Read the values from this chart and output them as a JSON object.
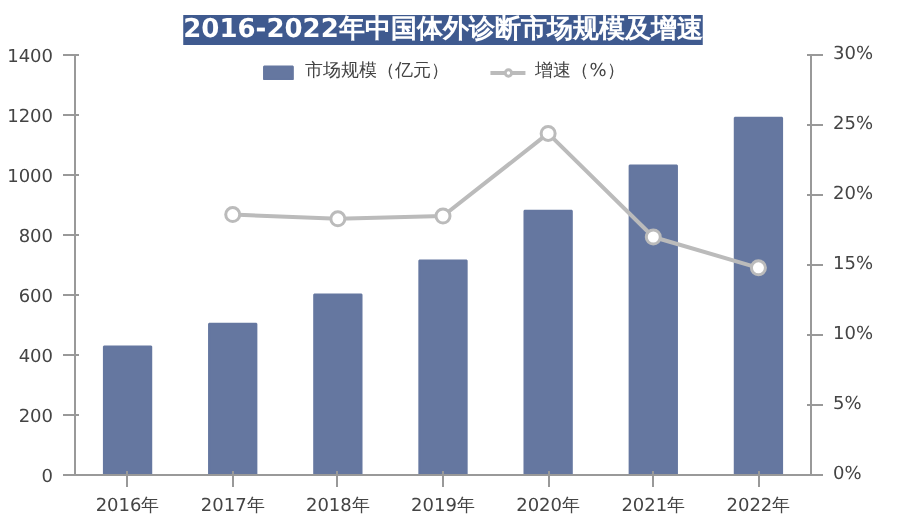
{
  "chart_data": {
    "type": "bar",
    "title": "2016-2022年中国体外诊断市场规模及增速",
    "categories": [
      "2016年",
      "2017年",
      "2018年",
      "2019年",
      "2020年",
      "2021年",
      "2022年"
    ],
    "series": [
      {
        "name": "市场规模（亿元）",
        "color": "#6577a0",
        "values": [
          428,
          504,
          602,
          715,
          881,
          1032,
          1191
        ]
      },
      {
        "name": "增速（%）",
        "type": "line",
        "axis": "y2",
        "color": "#bbbbbb",
        "marker": "circle",
        "values": [
          null,
          18.6,
          18.3,
          18.5,
          24.4,
          17.0,
          14.8
        ]
      }
    ],
    "ylim": [
      0,
      1400
    ],
    "yticks": [
      0,
      200,
      400,
      600,
      800,
      1000,
      1200,
      1400
    ],
    "y2lim": [
      0,
      30
    ],
    "y2ticks": [
      {
        "value": 0,
        "label": "0%"
      },
      {
        "value": 5,
        "label": "5%"
      },
      {
        "value": 10,
        "label": "10%"
      },
      {
        "value": 15,
        "label": "15%"
      },
      {
        "value": 20,
        "label": "20%"
      },
      {
        "value": 25,
        "label": "25%"
      },
      {
        "value": 30,
        "label": "30%"
      }
    ],
    "grid": false,
    "legend": "top"
  }
}
